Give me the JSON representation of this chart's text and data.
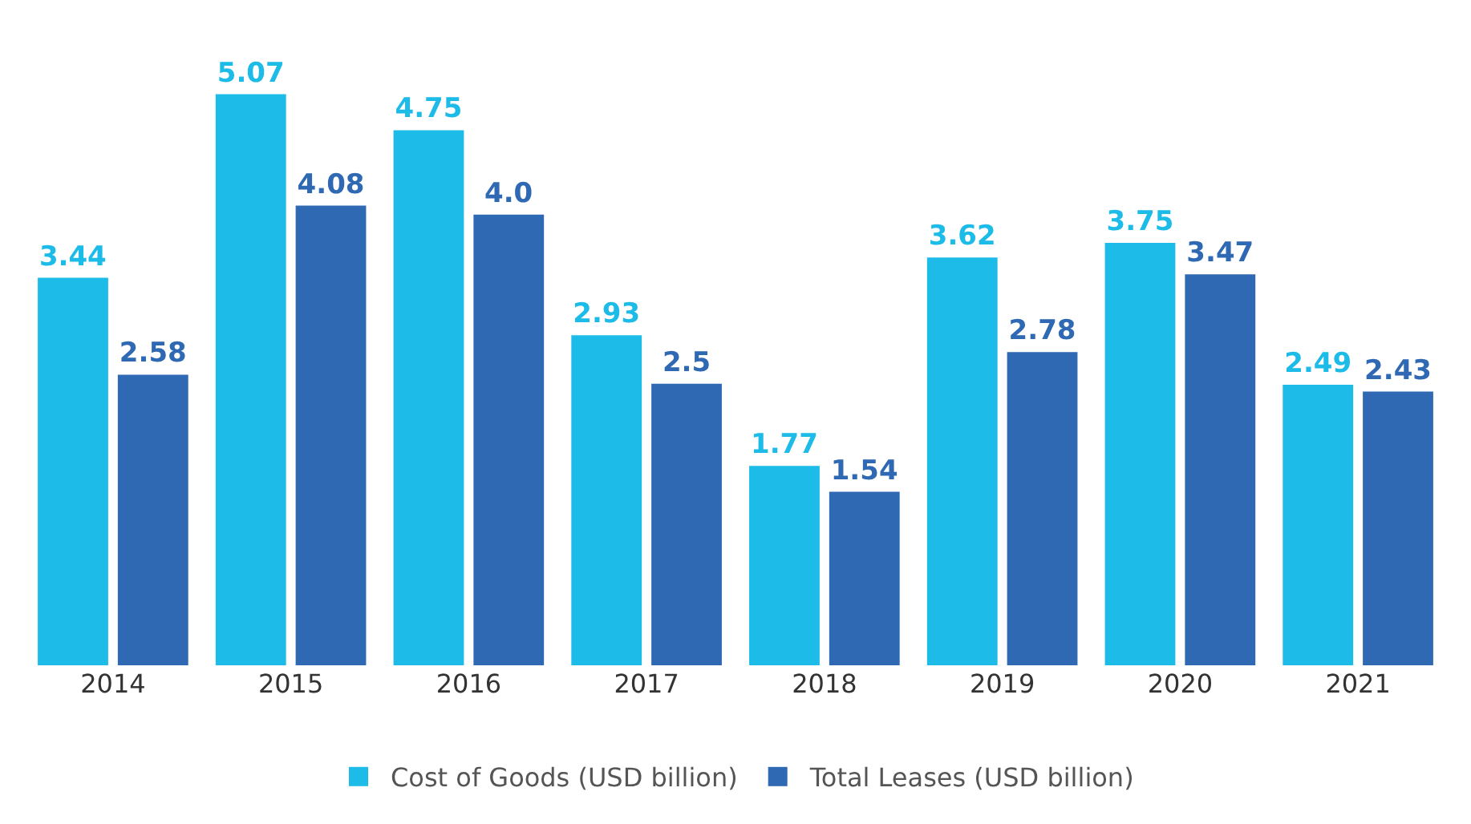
{
  "chart_data": {
    "type": "bar",
    "categories": [
      "2014",
      "2015",
      "2016",
      "2017",
      "2018",
      "2019",
      "2020",
      "2021"
    ],
    "series": [
      {
        "name": "Cost of Goods (USD billion)",
        "color": "#1cbbe8",
        "values": [
          3.44,
          5.07,
          4.75,
          2.93,
          1.77,
          3.62,
          3.75,
          2.49
        ],
        "value_labels": [
          "3.44",
          "5.07",
          "4.75",
          "2.93",
          "1.77",
          "3.62",
          "3.75",
          "2.49"
        ]
      },
      {
        "name": "Total Leases (USD billion)",
        "color": "#2f69b3",
        "values": [
          2.58,
          4.08,
          4.0,
          2.5,
          1.54,
          2.78,
          3.47,
          2.43
        ],
        "value_labels": [
          "2.58",
          "4.08",
          "4.0",
          "2.5",
          "1.54",
          "2.78",
          "3.47",
          "2.43"
        ]
      }
    ],
    "legend": "bottom",
    "tick_labels": "x"
  }
}
